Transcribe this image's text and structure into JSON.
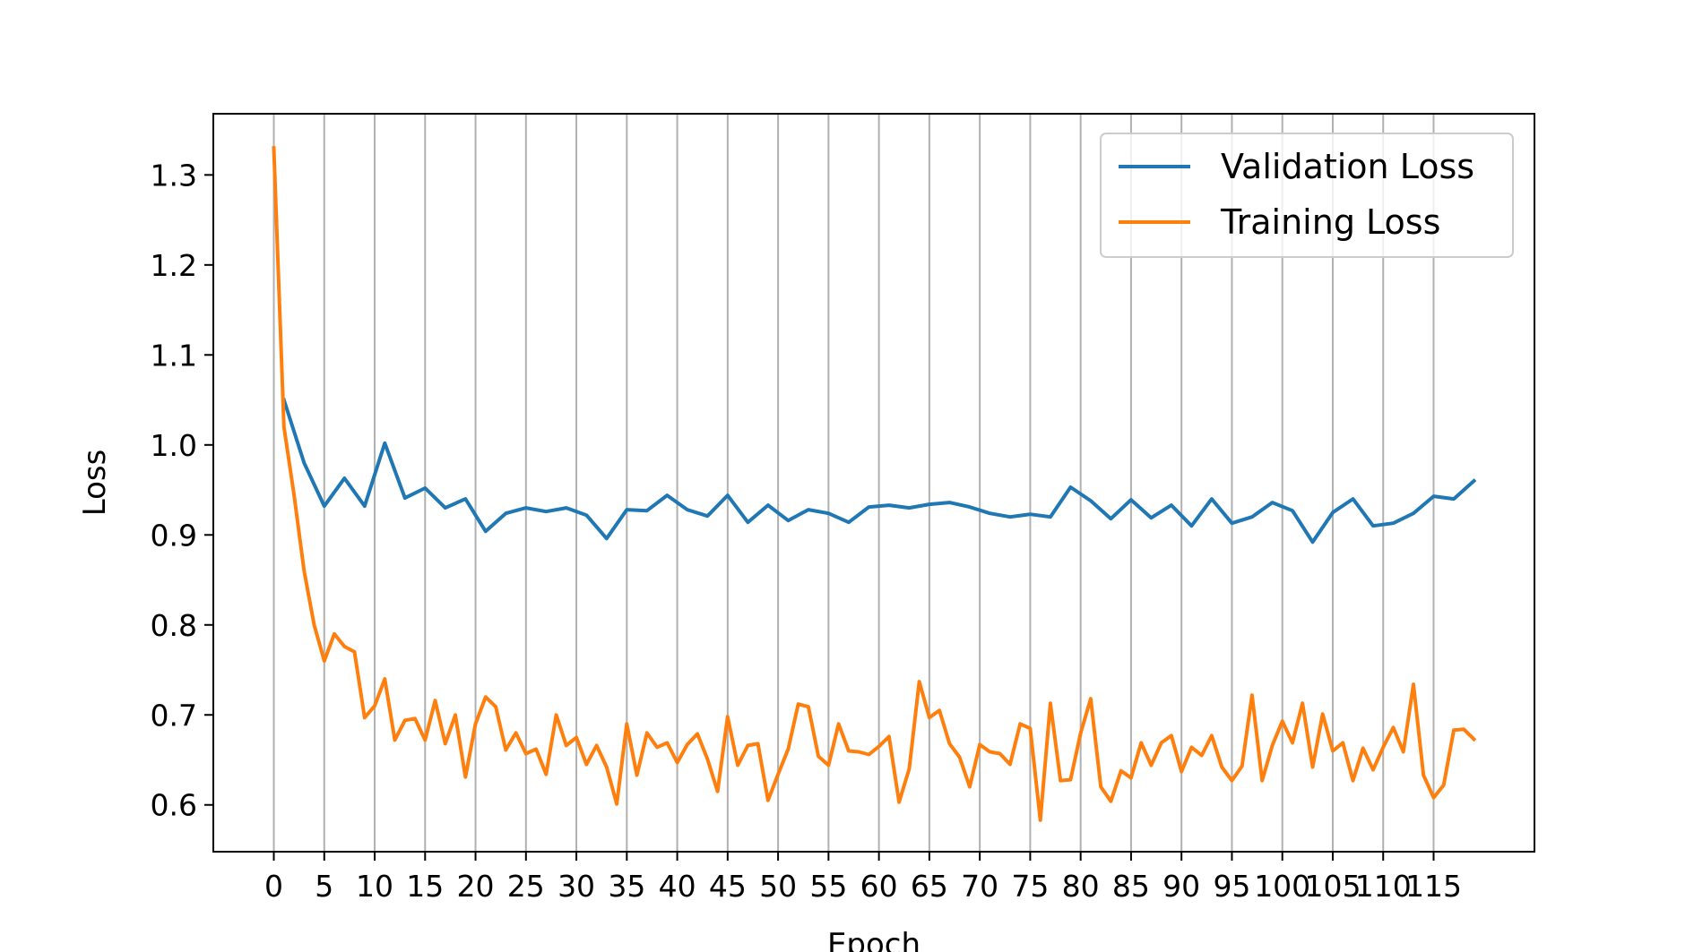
{
  "chart_data": {
    "type": "line",
    "xlabel": "Epoch",
    "ylabel": "Loss",
    "xlim": [
      -6,
      125
    ],
    "ylim": [
      0.548,
      1.368
    ],
    "x_ticks": [
      0,
      5,
      10,
      15,
      20,
      25,
      30,
      35,
      40,
      45,
      50,
      55,
      60,
      65,
      70,
      75,
      80,
      85,
      90,
      95,
      100,
      105,
      110,
      115
    ],
    "y_ticks": [
      0.6,
      0.7,
      0.8,
      0.9,
      1.0,
      1.1,
      1.2,
      1.3
    ],
    "y_tick_labels": [
      "0.6",
      "0.7",
      "0.8",
      "0.9",
      "1.0",
      "1.1",
      "1.2",
      "1.3"
    ],
    "grid": "x-only",
    "legend": "top-right",
    "series": [
      {
        "name": "Validation Loss",
        "color": "#1f77b4",
        "x": [
          1,
          3,
          5,
          7,
          9,
          11,
          13,
          15,
          17,
          19,
          21,
          23,
          25,
          27,
          29,
          31,
          33,
          35,
          37,
          39,
          41,
          43,
          45,
          47,
          49,
          51,
          53,
          55,
          57,
          59,
          61,
          63,
          65,
          67,
          69,
          71,
          73,
          75,
          77,
          79,
          81,
          83,
          85,
          87,
          89,
          91,
          93,
          95,
          97,
          99,
          101,
          103,
          105,
          107,
          109,
          111,
          113,
          115,
          117,
          119
        ],
        "values": [
          1.05,
          0.98,
          0.932,
          0.963,
          0.932,
          1.002,
          0.941,
          0.952,
          0.93,
          0.94,
          0.904,
          0.924,
          0.93,
          0.926,
          0.93,
          0.922,
          0.896,
          0.928,
          0.927,
          0.944,
          0.928,
          0.921,
          0.944,
          0.914,
          0.933,
          0.916,
          0.928,
          0.924,
          0.914,
          0.931,
          0.933,
          0.93,
          0.934,
          0.936,
          0.931,
          0.924,
          0.92,
          0.923,
          0.92,
          0.953,
          0.938,
          0.918,
          0.939,
          0.919,
          0.933,
          0.91,
          0.94,
          0.913,
          0.92,
          0.936,
          0.927,
          0.892,
          0.925,
          0.94,
          0.91,
          0.913,
          0.924,
          0.943,
          0.94,
          0.96
        ]
      },
      {
        "name": "Training Loss",
        "color": "#ff7f0e",
        "x": [
          0,
          1,
          2,
          3,
          4,
          5,
          6,
          7,
          8,
          9,
          10,
          11,
          12,
          13,
          14,
          15,
          16,
          17,
          18,
          19,
          20,
          21,
          22,
          23,
          24,
          25,
          26,
          27,
          28,
          29,
          30,
          31,
          32,
          33,
          34,
          35,
          36,
          37,
          38,
          39,
          40,
          41,
          42,
          43,
          44,
          45,
          46,
          47,
          48,
          49,
          50,
          51,
          52,
          53,
          54,
          55,
          56,
          57,
          58,
          59,
          60,
          61,
          62,
          63,
          64,
          65,
          66,
          67,
          68,
          69,
          70,
          71,
          72,
          73,
          74,
          75,
          76,
          77,
          78,
          79,
          80,
          81,
          82,
          83,
          84,
          85,
          86,
          87,
          88,
          89,
          90,
          91,
          92,
          93,
          94,
          95,
          96,
          97,
          98,
          99,
          100,
          101,
          102,
          103,
          104,
          105,
          106,
          107,
          108,
          109,
          110,
          111,
          112,
          113,
          114,
          115,
          116,
          117,
          118,
          119
        ],
        "values": [
          1.33,
          1.02,
          0.945,
          0.86,
          0.8,
          0.76,
          0.79,
          0.776,
          0.77,
          0.697,
          0.71,
          0.74,
          0.672,
          0.694,
          0.696,
          0.672,
          0.716,
          0.668,
          0.7,
          0.631,
          0.69,
          0.72,
          0.709,
          0.661,
          0.68,
          0.657,
          0.662,
          0.634,
          0.7,
          0.666,
          0.675,
          0.645,
          0.666,
          0.642,
          0.601,
          0.69,
          0.633,
          0.68,
          0.664,
          0.669,
          0.647,
          0.667,
          0.679,
          0.651,
          0.615,
          0.698,
          0.644,
          0.666,
          0.668,
          0.605,
          0.634,
          0.662,
          0.712,
          0.709,
          0.654,
          0.644,
          0.69,
          0.66,
          0.659,
          0.656,
          0.665,
          0.676,
          0.603,
          0.64,
          0.737,
          0.697,
          0.705,
          0.668,
          0.653,
          0.62,
          0.667,
          0.659,
          0.657,
          0.645,
          0.69,
          0.685,
          0.583,
          0.713,
          0.627,
          0.628,
          0.68,
          0.718,
          0.62,
          0.604,
          0.638,
          0.63,
          0.669,
          0.644,
          0.669,
          0.677,
          0.637,
          0.664,
          0.655,
          0.677,
          0.642,
          0.627,
          0.643,
          0.722,
          0.627,
          0.666,
          0.693,
          0.669,
          0.713,
          0.642,
          0.701,
          0.66,
          0.669,
          0.627,
          0.663,
          0.639,
          0.664,
          0.686,
          0.659,
          0.734,
          0.633,
          0.608,
          0.622,
          0.683,
          0.684,
          0.673
        ]
      }
    ]
  }
}
